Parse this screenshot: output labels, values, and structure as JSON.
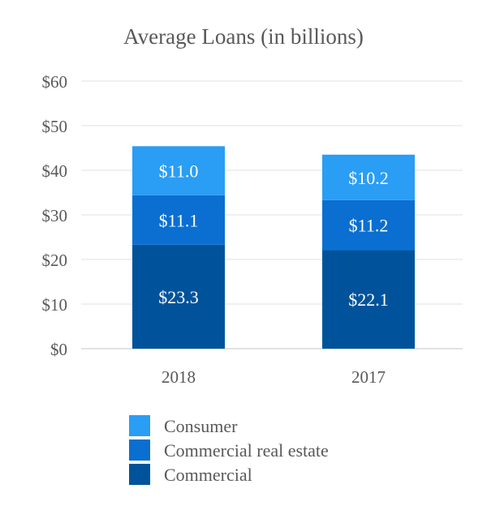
{
  "chart_data": {
    "type": "bar",
    "stacked": true,
    "title": "Average Loans (in billions)",
    "xlabel": "",
    "ylabel": "",
    "categories": [
      "2018",
      "2017"
    ],
    "ylim": [
      0,
      60
    ],
    "yticks": [
      "$0",
      "$10",
      "$20",
      "$30",
      "$40",
      "$50",
      "$60"
    ],
    "ytick_values": [
      0,
      10,
      20,
      30,
      40,
      50,
      60
    ],
    "grid": true,
    "legend_position": "bottom",
    "series": [
      {
        "name": "Commercial",
        "values": [
          23.3,
          22.1
        ],
        "labels": [
          "$23.3",
          "$22.1"
        ],
        "color": "#00539b"
      },
      {
        "name": "Commercial real estate",
        "values": [
          11.1,
          11.2
        ],
        "labels": [
          "$11.1",
          "$11.2"
        ],
        "color": "#0a6fd1"
      },
      {
        "name": "Consumer",
        "values": [
          11.0,
          10.2
        ],
        "labels": [
          "$11.0",
          "$10.2"
        ],
        "color": "#2a9df4"
      }
    ],
    "legend_order": [
      "Consumer",
      "Commercial real estate",
      "Commercial"
    ]
  }
}
